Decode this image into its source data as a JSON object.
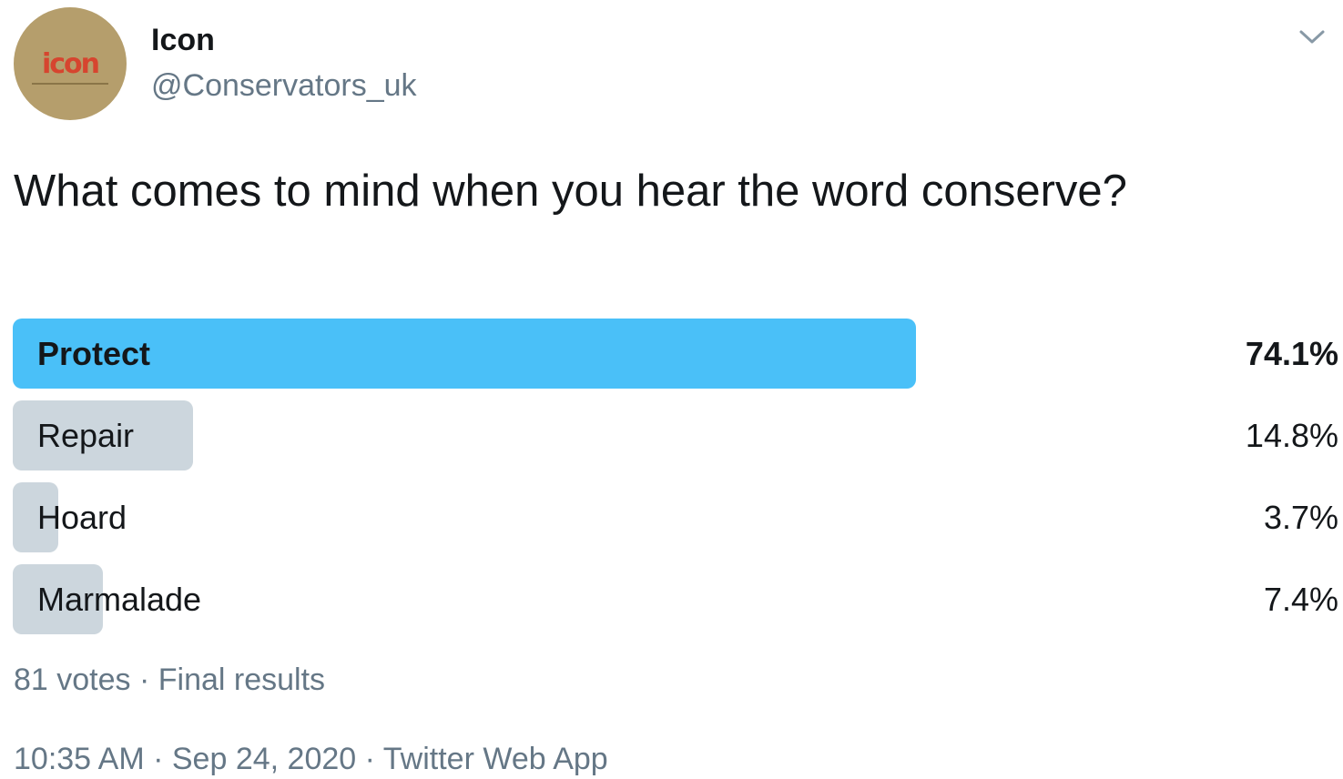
{
  "author": {
    "avatar_logo_text": "icon",
    "display_name": "Icon",
    "handle": "@Conservators_uk"
  },
  "menu": {
    "icon": "chevron-down-icon"
  },
  "tweet": {
    "text": "What comes to mind when you hear the word conserve?"
  },
  "poll": {
    "options": [
      {
        "label": "Protect",
        "percent_text": "74.1%",
        "percent": 74.1,
        "winner": true
      },
      {
        "label": "Repair",
        "percent_text": "14.8%",
        "percent": 14.8,
        "winner": false
      },
      {
        "label": "Hoard",
        "percent_text": "3.7%",
        "percent": 3.7,
        "winner": false
      },
      {
        "label": "Marmalade",
        "percent_text": "7.4%",
        "percent": 7.4,
        "winner": false
      }
    ],
    "votes_text": "81 votes",
    "separator": " · ",
    "status_text": "Final results"
  },
  "meta": {
    "time": "10:35 AM",
    "separator": " · ",
    "date": "Sep 24, 2020",
    "source": "Twitter Web App"
  },
  "colors": {
    "winner_bar": "#4ac0f8",
    "other_bar": "#ccd6dd",
    "secondary_text": "#657786",
    "primary_text": "#14171a"
  }
}
